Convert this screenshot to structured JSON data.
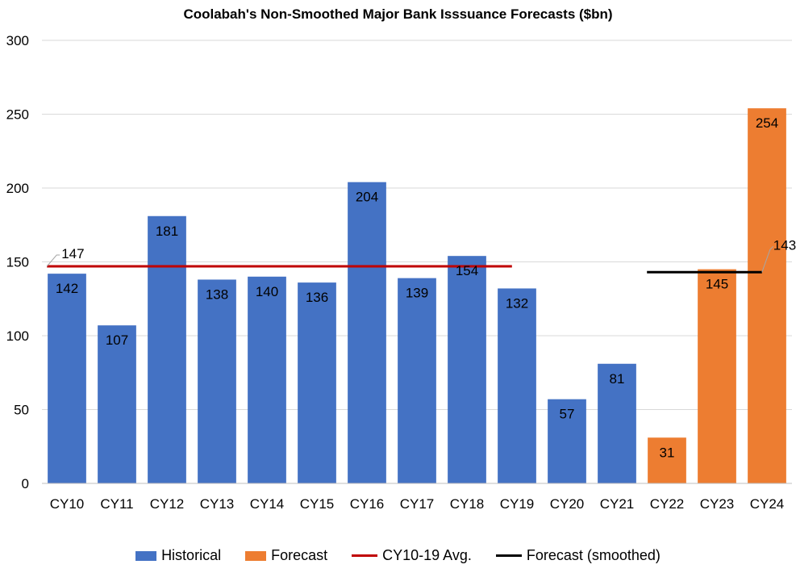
{
  "chart_data": {
    "type": "bar",
    "title": "Coolabah's Non-Smoothed Major Bank Isssuance Forecasts ($bn)",
    "xlabel": "",
    "ylabel": "",
    "ylim": [
      0,
      300
    ],
    "yticks": [
      0,
      50,
      100,
      150,
      200,
      250,
      300
    ],
    "grid": true,
    "categories": [
      "CY10",
      "CY11",
      "CY12",
      "CY13",
      "CY14",
      "CY15",
      "CY16",
      "CY17",
      "CY18",
      "CY19",
      "CY20",
      "CY21",
      "CY22",
      "CY23",
      "CY24"
    ],
    "series": [
      {
        "name": "Historical",
        "color": "#4472C4",
        "values": [
          142,
          107,
          181,
          138,
          140,
          136,
          204,
          139,
          154,
          132,
          57,
          81,
          null,
          null,
          null
        ]
      },
      {
        "name": "Forecast",
        "color": "#ED7D31",
        "values": [
          null,
          null,
          null,
          null,
          null,
          null,
          null,
          null,
          null,
          null,
          null,
          null,
          31,
          145,
          254
        ]
      }
    ],
    "lines": [
      {
        "name": "CY10-19 Avg.",
        "color": "#C00000",
        "value": 147,
        "from": "CY10",
        "to": "CY19",
        "label": "147"
      },
      {
        "name": "Forecast (smoothed)",
        "color": "#000000",
        "value": 143,
        "from": "CY22",
        "to": "CY24",
        "label": "143"
      }
    ],
    "legend_position": "bottom"
  }
}
